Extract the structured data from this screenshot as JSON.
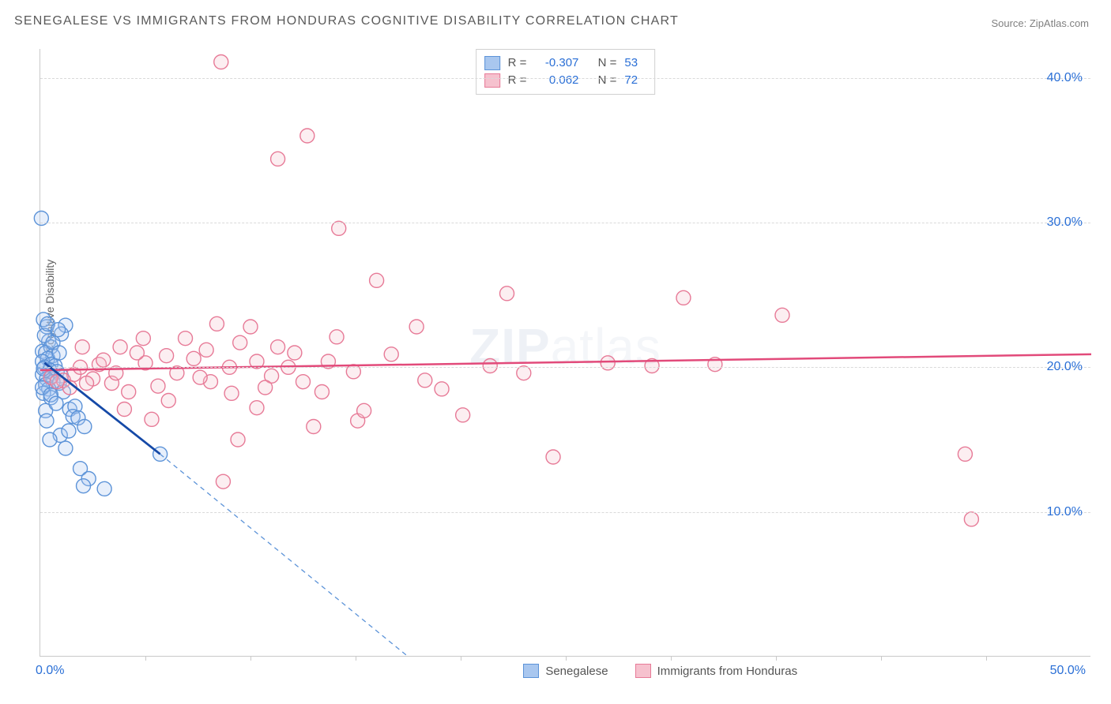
{
  "title": "SENEGALESE VS IMMIGRANTS FROM HONDURAS COGNITIVE DISABILITY CORRELATION CHART",
  "source": "Source: ZipAtlas.com",
  "ylabel": "Cognitive Disability",
  "watermark_bold": "ZIP",
  "watermark_light": "atlas",
  "colors": {
    "blue_fill": "#a9c7ef",
    "blue_stroke": "#5c93d8",
    "blue_line": "#1549a7",
    "pink_fill": "#f6c1ce",
    "pink_stroke": "#e77a97",
    "pink_line": "#e24a7a",
    "grid": "#d9d9d9",
    "axis": "#c9c9c9",
    "tick_text": "#2a6fd6",
    "body_text": "#5a5a5a"
  },
  "chart": {
    "type": "scatter",
    "xlim": [
      0,
      50
    ],
    "ylim": [
      0,
      42
    ],
    "y_ticks": [
      10,
      20,
      30,
      40
    ],
    "y_tick_labels": [
      "10.0%",
      "20.0%",
      "30.0%",
      "40.0%"
    ],
    "x_minor_ticks": [
      5,
      10,
      15,
      20,
      25,
      30,
      35,
      40,
      45
    ],
    "x_tick_labels": {
      "0": "0.0%",
      "50": "50.0%"
    },
    "marker_radius": 9,
    "background_color": "#ffffff"
  },
  "stats": {
    "rows": [
      {
        "swatch": "blue",
        "R": "-0.307",
        "N": "53"
      },
      {
        "swatch": "pink",
        "R": "0.062",
        "N": "72"
      }
    ],
    "R_label": "R =",
    "N_label": "N ="
  },
  "bottom_legend": [
    {
      "swatch": "blue",
      "label": "Senegalese"
    },
    {
      "swatch": "pink",
      "label": "Immigrants from Honduras"
    }
  ],
  "trend_lines": {
    "blue_solid": {
      "x1": 0.2,
      "y1": 20.3,
      "x2": 5.7,
      "y2": 14.0
    },
    "blue_dashed": {
      "x1": 5.7,
      "y1": 14.0,
      "x2": 17.5,
      "y2": 0.0
    },
    "pink_solid": {
      "x1": 0.0,
      "y1": 19.8,
      "x2": 50.0,
      "y2": 20.9
    }
  },
  "series": [
    {
      "name": "Senegalese",
      "color_key": "blue",
      "points": [
        [
          0.05,
          30.3
        ],
        [
          1.2,
          22.9
        ],
        [
          0.3,
          22.8
        ],
        [
          0.15,
          23.3
        ],
        [
          1.0,
          22.3
        ],
        [
          0.4,
          21.8
        ],
        [
          0.1,
          21.1
        ],
        [
          0.5,
          21.4
        ],
        [
          0.25,
          21.0
        ],
        [
          0.6,
          20.8
        ],
        [
          0.35,
          20.6
        ],
        [
          0.1,
          20.4
        ],
        [
          0.5,
          20.2
        ],
        [
          0.7,
          20.1
        ],
        [
          0.2,
          20.0
        ],
        [
          0.45,
          19.8
        ],
        [
          0.8,
          19.7
        ],
        [
          0.1,
          19.5
        ],
        [
          0.55,
          19.4
        ],
        [
          0.3,
          19.2
        ],
        [
          1.0,
          19.4
        ],
        [
          0.6,
          19.0
        ],
        [
          0.25,
          18.8
        ],
        [
          0.9,
          18.9
        ],
        [
          0.4,
          18.5
        ],
        [
          0.15,
          18.2
        ],
        [
          1.1,
          18.3
        ],
        [
          0.5,
          17.9
        ],
        [
          1.4,
          17.1
        ],
        [
          1.65,
          17.3
        ],
        [
          0.25,
          17.0
        ],
        [
          1.55,
          16.6
        ],
        [
          1.8,
          16.5
        ],
        [
          2.1,
          15.9
        ],
        [
          0.95,
          15.3
        ],
        [
          1.35,
          15.6
        ],
        [
          5.7,
          14.0
        ],
        [
          1.9,
          13.0
        ],
        [
          2.3,
          12.3
        ],
        [
          2.05,
          11.8
        ],
        [
          3.05,
          11.6
        ],
        [
          1.2,
          14.4
        ],
        [
          0.2,
          22.2
        ],
        [
          0.35,
          23.0
        ],
        [
          0.85,
          22.6
        ],
        [
          0.1,
          18.6
        ],
        [
          0.6,
          21.7
        ],
        [
          0.9,
          21.0
        ],
        [
          0.15,
          19.9
        ],
        [
          0.5,
          18.1
        ],
        [
          0.75,
          17.5
        ],
        [
          0.3,
          16.3
        ],
        [
          0.45,
          15.0
        ]
      ]
    },
    {
      "name": "Immigrants from Honduras",
      "color_key": "pink",
      "points": [
        [
          8.6,
          41.1
        ],
        [
          12.7,
          36.0
        ],
        [
          11.3,
          34.4
        ],
        [
          14.2,
          29.6
        ],
        [
          16.0,
          26.0
        ],
        [
          22.2,
          25.1
        ],
        [
          30.6,
          24.8
        ],
        [
          35.3,
          23.6
        ],
        [
          27.0,
          20.3
        ],
        [
          32.1,
          20.2
        ],
        [
          44.3,
          9.5
        ],
        [
          44.0,
          14.0
        ],
        [
          24.4,
          13.8
        ],
        [
          18.3,
          19.1
        ],
        [
          20.1,
          16.7
        ],
        [
          15.1,
          16.3
        ],
        [
          13.0,
          15.9
        ],
        [
          9.4,
          15.0
        ],
        [
          8.7,
          12.1
        ],
        [
          6.1,
          17.7
        ],
        [
          9.5,
          21.7
        ],
        [
          11.3,
          21.4
        ],
        [
          7.3,
          20.6
        ],
        [
          12.5,
          19.0
        ],
        [
          14.1,
          22.1
        ],
        [
          10.3,
          20.4
        ],
        [
          9.1,
          18.2
        ],
        [
          5.6,
          18.7
        ],
        [
          4.2,
          18.3
        ],
        [
          3.4,
          18.9
        ],
        [
          6.5,
          19.6
        ],
        [
          8.1,
          19.0
        ],
        [
          10.0,
          22.8
        ],
        [
          11.8,
          20.0
        ],
        [
          13.4,
          18.3
        ],
        [
          15.4,
          17.0
        ],
        [
          7.9,
          21.2
        ],
        [
          5.0,
          20.3
        ],
        [
          3.6,
          19.6
        ],
        [
          2.5,
          19.2
        ],
        [
          1.6,
          19.5
        ],
        [
          1.1,
          19.1
        ],
        [
          0.5,
          19.3
        ],
        [
          1.9,
          20.0
        ],
        [
          2.8,
          20.2
        ],
        [
          0.8,
          19.0
        ],
        [
          1.4,
          18.6
        ],
        [
          2.2,
          18.9
        ],
        [
          3.0,
          20.5
        ],
        [
          4.6,
          21.0
        ],
        [
          6.9,
          22.0
        ],
        [
          8.4,
          23.0
        ],
        [
          4.0,
          17.1
        ],
        [
          5.3,
          16.4
        ],
        [
          11.0,
          19.4
        ],
        [
          10.3,
          17.2
        ],
        [
          12.1,
          21.0
        ],
        [
          13.7,
          20.4
        ],
        [
          16.7,
          20.9
        ],
        [
          17.9,
          22.8
        ],
        [
          19.1,
          18.5
        ],
        [
          21.4,
          20.1
        ],
        [
          23.0,
          19.6
        ],
        [
          6.0,
          20.8
        ],
        [
          7.6,
          19.3
        ],
        [
          9.0,
          20.0
        ],
        [
          3.8,
          21.4
        ],
        [
          4.9,
          22.0
        ],
        [
          2.0,
          21.4
        ],
        [
          14.9,
          19.7
        ],
        [
          10.7,
          18.6
        ],
        [
          29.1,
          20.1
        ]
      ]
    }
  ]
}
